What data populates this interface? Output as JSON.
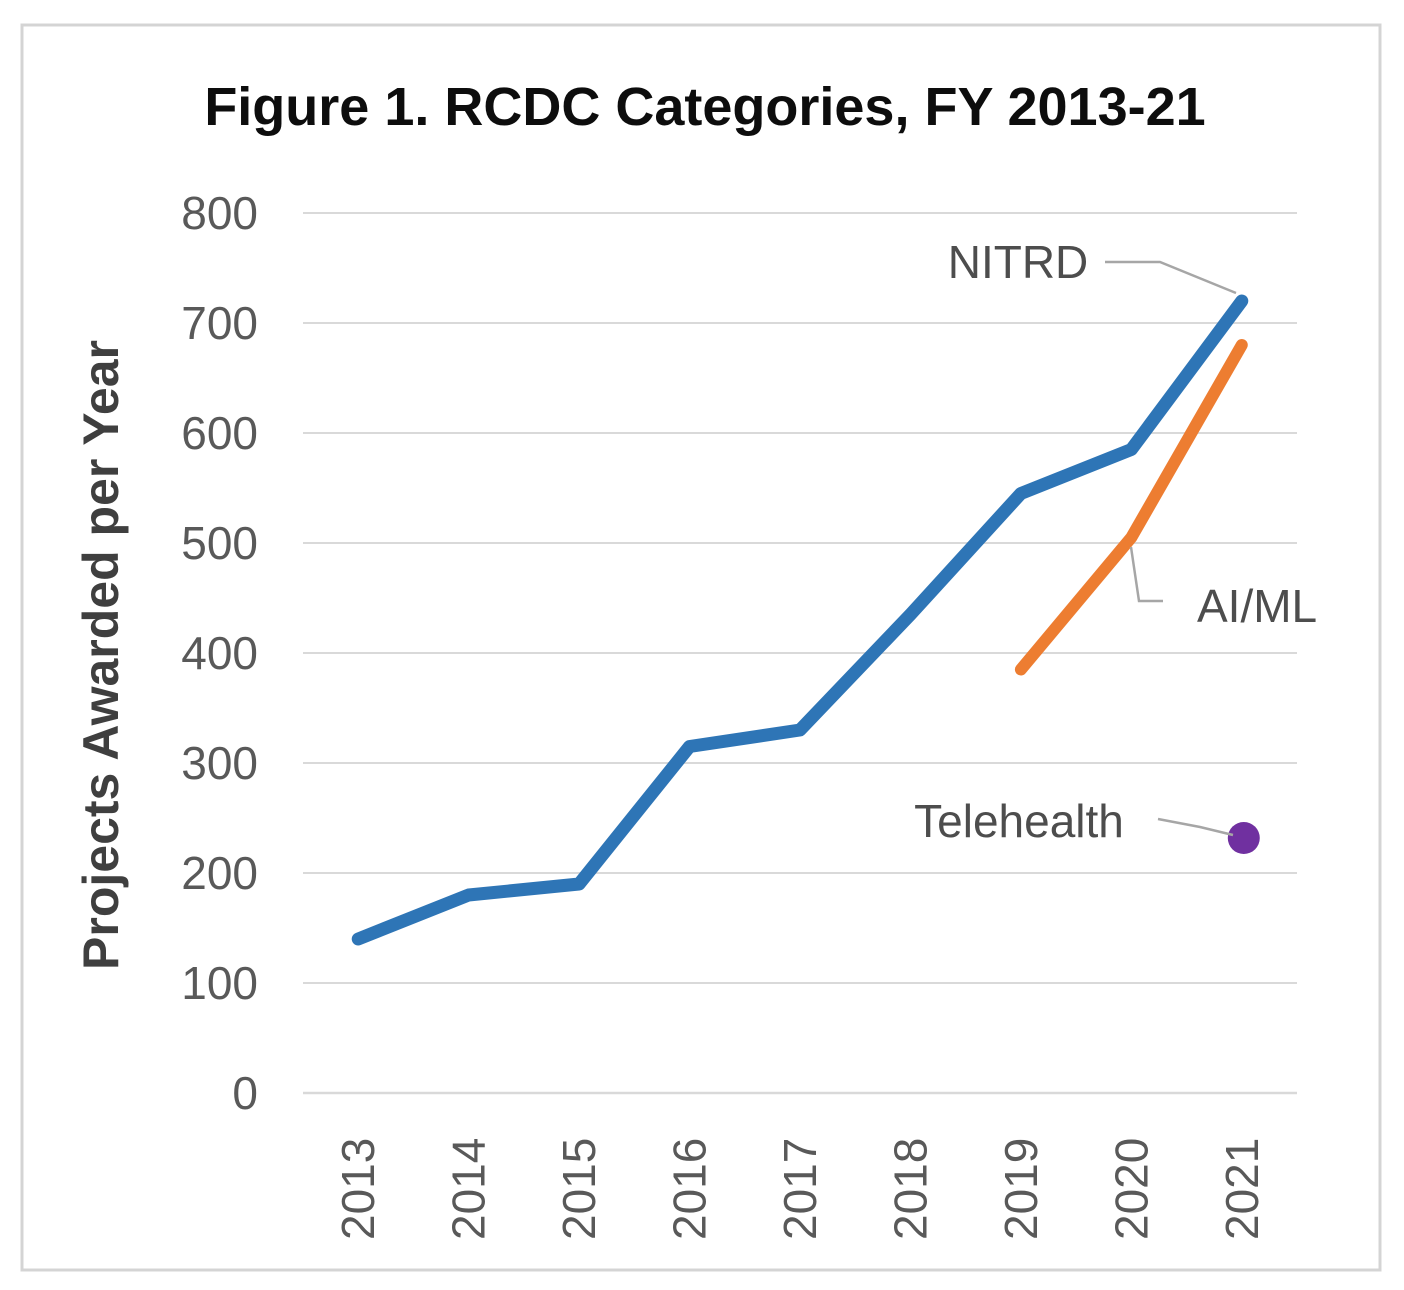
{
  "figure": {
    "title": "Figure 1. RCDC Categories, FY 2013-21"
  },
  "chart_data": {
    "type": "line",
    "title": "Figure 1. RCDC Categories, FY 2013-21",
    "xlabel": "",
    "ylabel": "Projects Awarded per Year",
    "categories": [
      "2013",
      "2014",
      "2015",
      "2016",
      "2017",
      "2018",
      "2019",
      "2020",
      "2021"
    ],
    "ylim": [
      0,
      800
    ],
    "yticks": [
      0,
      100,
      200,
      300,
      400,
      500,
      600,
      700,
      800
    ],
    "grid": true,
    "legend_position": "none - series labeled directly on chart with gray leader lines",
    "series": [
      {
        "name": "NITRD",
        "label": "NITRD",
        "color": "#2E75B6",
        "style": "solid-line",
        "x": [
          2013,
          2014,
          2015,
          2016,
          2017,
          2018,
          2019,
          2020,
          2021
        ],
        "values": [
          140,
          180,
          190,
          315,
          330,
          435,
          545,
          585,
          720
        ]
      },
      {
        "name": "AI/ML",
        "label": "AI/ML",
        "color": "#ED7D31",
        "style": "solid-line",
        "x": [
          2019,
          2020,
          2021
        ],
        "values": [
          385,
          505,
          680
        ]
      },
      {
        "name": "Telehealth",
        "label": "Telehealth",
        "color": "#7030A0",
        "style": "dot-marker",
        "x": [
          2021
        ],
        "values": [
          230
        ]
      }
    ],
    "annotations": [
      {
        "text": "NITRD",
        "target_series": "NITRD",
        "target_year": 2021
      },
      {
        "text": "AI/ML",
        "target_series": "AI/ML",
        "target_year": 2020
      },
      {
        "text": "Telehealth",
        "target_series": "Telehealth",
        "target_year": 2021
      }
    ]
  },
  "colors": {
    "nitrd_line": "#2E75B6",
    "aiml_line": "#ED7D31",
    "telehealth_dot": "#7030A0",
    "gridline": "#D9D9D9",
    "axis_line": "#D9D9D9",
    "tick_text": "#595959",
    "annotation_text": "#4d4d4d",
    "leader_line": "#A6A6A6",
    "frame_border": "#D4D4D4",
    "background": "#FFFFFF"
  }
}
